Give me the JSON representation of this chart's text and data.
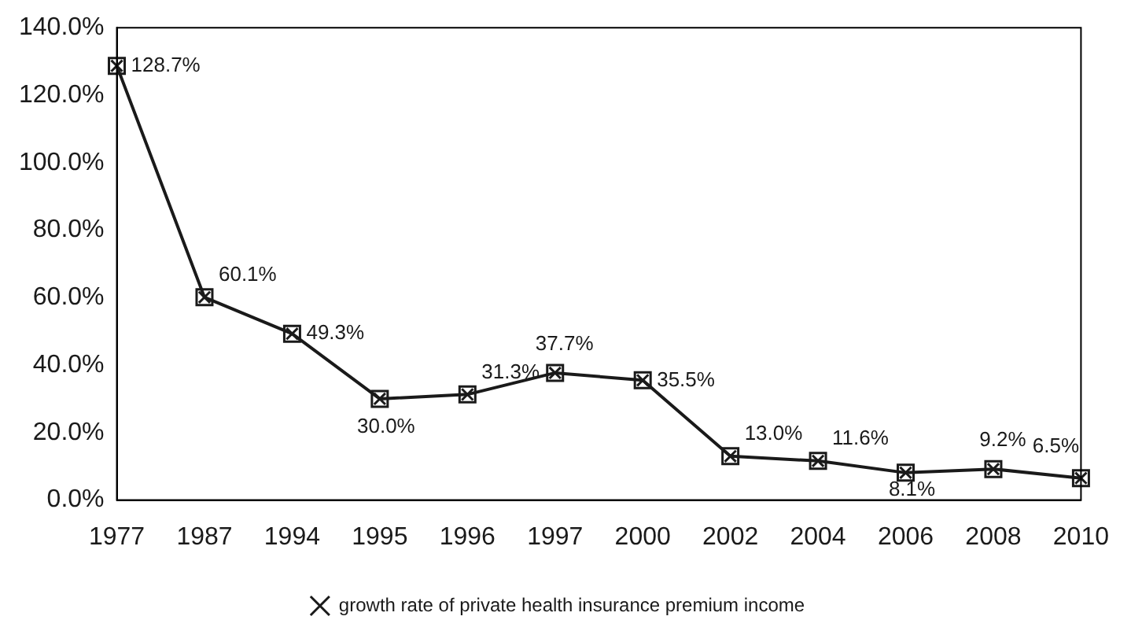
{
  "chart_data": {
    "type": "line",
    "categories": [
      "1977",
      "1987",
      "1994",
      "1995",
      "1996",
      "1997",
      "2000",
      "2002",
      "2004",
      "2006",
      "2008",
      "2010"
    ],
    "series": [
      {
        "name": "growth rate of private health insurance premium income",
        "color": "#1a1a1a",
        "values": [
          128.7,
          60.1,
          49.3,
          30.0,
          31.3,
          37.7,
          35.5,
          13.0,
          11.6,
          8.1,
          9.2,
          6.5
        ]
      }
    ],
    "ylim": [
      0,
      140
    ],
    "yticks": [
      {
        "value": 0,
        "label": "0.0%"
      },
      {
        "value": 20,
        "label": "20.0%"
      },
      {
        "value": 40,
        "label": "40.0%"
      },
      {
        "value": 60,
        "label": "60.0%"
      },
      {
        "value": 80,
        "label": "80.0%"
      },
      {
        "value": 100,
        "label": "100.0%"
      },
      {
        "value": 120,
        "label": "120.0%"
      },
      {
        "value": 140,
        "label": "140.0%"
      }
    ],
    "value_labels": [
      "128.7%",
      "60.1%",
      "49.3%",
      "30.0%",
      "31.3%",
      "37.7%",
      "35.5%",
      "13.0%",
      "11.6%",
      "8.1%",
      "9.2%",
      "6.5%"
    ],
    "grid": false,
    "legend": "bottom",
    "marker": "cross",
    "line_style": "solid"
  }
}
